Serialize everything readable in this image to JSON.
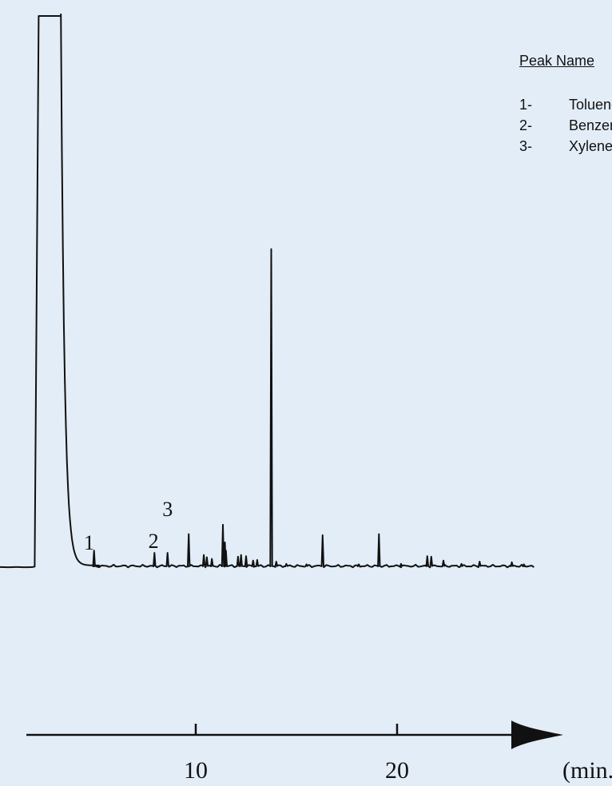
{
  "chart_data": {
    "type": "line",
    "title": "",
    "xlabel": "(min.)",
    "ylabel": "",
    "xlim": [
      -0.5,
      27
    ],
    "x_ticks": [
      10,
      20
    ],
    "x_tick_labels": [
      "10",
      "20"
    ],
    "grid": false,
    "legend": {
      "title": "Peak Name",
      "placement": "top-right",
      "entries": [
        {
          "number": "1-",
          "name": "Toluene"
        },
        {
          "number": "2-",
          "name": "Benzene"
        },
        {
          "number": "3-",
          "name": "Xylene"
        }
      ]
    },
    "peak_labels": [
      {
        "label": "1",
        "x": 4.7
      },
      {
        "label": "2",
        "x": 7.9
      },
      {
        "label": "3",
        "x": 8.6
      }
    ],
    "baseline": 0.0,
    "solvent_peak": {
      "start": 2.0,
      "rise_end": 2.2,
      "plateau_end": 3.3,
      "tail_end": 5.2,
      "height": 100
    },
    "series": [
      {
        "values": [
          [
            4.95,
            3.0
          ],
          [
            7.95,
            2.6
          ],
          [
            8.6,
            2.6
          ],
          [
            9.65,
            6.0
          ],
          [
            10.4,
            2.2
          ],
          [
            10.55,
            1.8
          ],
          [
            10.8,
            1.5
          ],
          [
            11.35,
            7.7
          ],
          [
            11.45,
            4.5
          ],
          [
            11.5,
            3.0
          ],
          [
            12.1,
            1.9
          ],
          [
            12.25,
            2.2
          ],
          [
            12.5,
            2.0
          ],
          [
            12.85,
            1.2
          ],
          [
            13.05,
            1.3
          ],
          [
            13.75,
            57.7
          ],
          [
            14.0,
            1.0
          ],
          [
            14.5,
            0.6
          ],
          [
            15.5,
            0.5
          ],
          [
            16.3,
            5.8
          ],
          [
            18.1,
            0.5
          ],
          [
            19.1,
            6.0
          ],
          [
            20.2,
            0.6
          ],
          [
            21.5,
            2.0
          ],
          [
            21.7,
            1.9
          ],
          [
            22.3,
            1.2
          ],
          [
            23.2,
            0.6
          ],
          [
            24.1,
            1.0
          ],
          [
            25.7,
            0.9
          ],
          [
            26.3,
            0.5
          ]
        ]
      }
    ]
  }
}
